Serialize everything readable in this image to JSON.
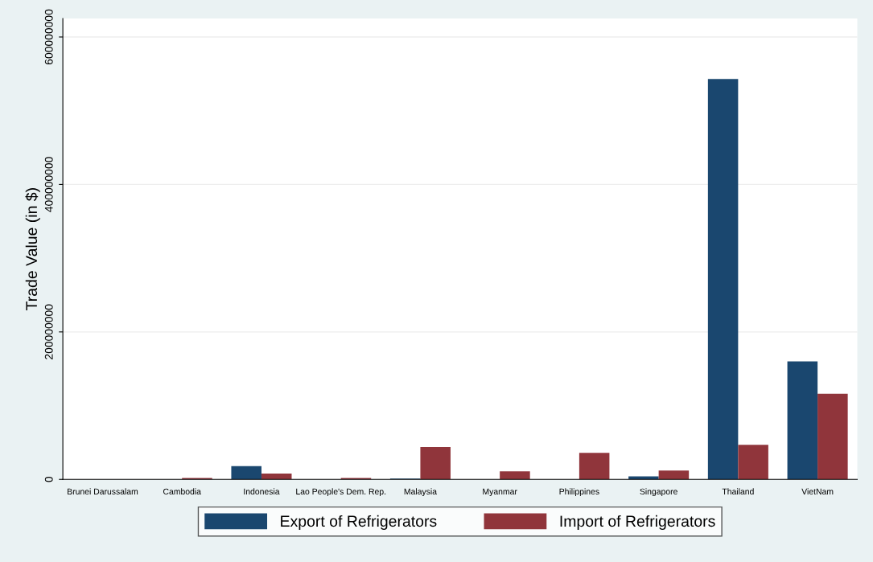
{
  "chart_data": {
    "type": "bar",
    "ylabel": "Trade Value (in $)",
    "categories": [
      "Brunei Darussalam",
      "Cambodia",
      "Indonesia",
      "Lao People's Dem. Rep.",
      "Malaysia",
      "Myanmar",
      "Philippines",
      "Singapore",
      "Thailand",
      "VietNam"
    ],
    "series": [
      {
        "name": "Export of Refrigerators",
        "color": "#1a476f",
        "values": [
          0,
          0,
          18000000,
          0,
          1000000,
          0,
          0,
          4000000,
          543000000,
          160000000
        ]
      },
      {
        "name": "Import of Refrigerators",
        "color": "#90353b",
        "values": [
          0,
          2000000,
          8000000,
          2000000,
          44000000,
          11000000,
          36000000,
          12000000,
          47000000,
          116000000
        ]
      }
    ],
    "ylim": [
      0,
      625000000
    ],
    "yticks": [
      0,
      200000000,
      400000000,
      600000000
    ],
    "grid": "y",
    "legend": "bottom"
  }
}
